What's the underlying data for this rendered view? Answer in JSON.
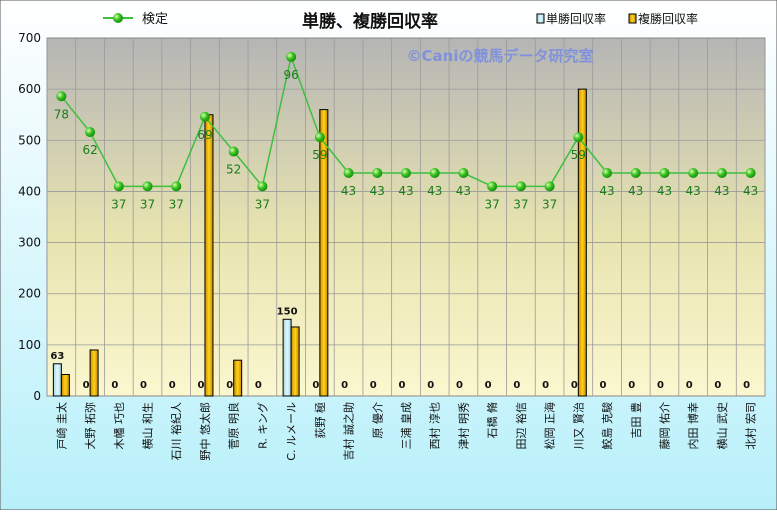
{
  "chart_data": {
    "type": "bar",
    "title": "単勝、複勝回収率",
    "watermark": "©Caniの競馬データ研究室",
    "categories": [
      "戸崎 圭太",
      "大野 拓弥",
      "木幡 巧也",
      "横山 和生",
      "石川 裕紀人",
      "野中 悠太郎",
      "菅原 明良",
      "R. キング",
      "C. ルメール",
      "荻野 極",
      "吉村 誠之助",
      "原 優介",
      "三浦 皇成",
      "西村 淳也",
      "津村 明秀",
      "石橋 脩",
      "田辺 裕信",
      "松岡 正海",
      "川又 賢治",
      "鮫島 克駿",
      "吉田 豊",
      "藤岡 佑介",
      "内田 博幸",
      "横山 武史",
      "北村 宏司"
    ],
    "ylim": [
      0,
      700
    ],
    "yticks": [
      0,
      100,
      200,
      300,
      400,
      500,
      600,
      700
    ],
    "grid": true,
    "legend_position": "top",
    "series": [
      {
        "name": "単勝回収率",
        "kind": "bar",
        "color": "#c9ecf5",
        "values": [
          63,
          0,
          0,
          0,
          0,
          0,
          0,
          0,
          150,
          0,
          0,
          0,
          0,
          0,
          0,
          0,
          0,
          0,
          0,
          0,
          0,
          0,
          0,
          0,
          0
        ]
      },
      {
        "name": "複勝回収率",
        "kind": "bar",
        "color": "#f2b705",
        "values": [
          42,
          90,
          0,
          0,
          0,
          550,
          70,
          0,
          135,
          560,
          0,
          0,
          0,
          0,
          0,
          0,
          0,
          0,
          600,
          0,
          0,
          0,
          0,
          0,
          0
        ]
      },
      {
        "name": "検定",
        "kind": "line",
        "color": "#3fbf3f",
        "values": [
          586,
          516,
          410,
          410,
          410,
          546,
          478,
          410,
          663,
          506,
          436,
          436,
          436,
          436,
          436,
          410,
          410,
          410,
          506,
          436,
          436,
          436,
          436,
          436,
          436
        ],
        "labels": [
          78,
          62,
          37,
          37,
          37,
          69,
          52,
          37,
          96,
          59,
          43,
          43,
          43,
          43,
          43,
          37,
          37,
          37,
          59,
          43,
          43,
          43,
          43,
          43,
          43
        ]
      }
    ],
    "bar1_labels": [
      "63",
      "0",
      "0",
      "0",
      "0",
      "0",
      "0",
      "0",
      "150",
      "0",
      "0",
      "0",
      "0",
      "0",
      "0",
      "0",
      "0",
      "0",
      "0",
      "0",
      "0",
      "0",
      "0",
      "0",
      "0"
    ]
  }
}
